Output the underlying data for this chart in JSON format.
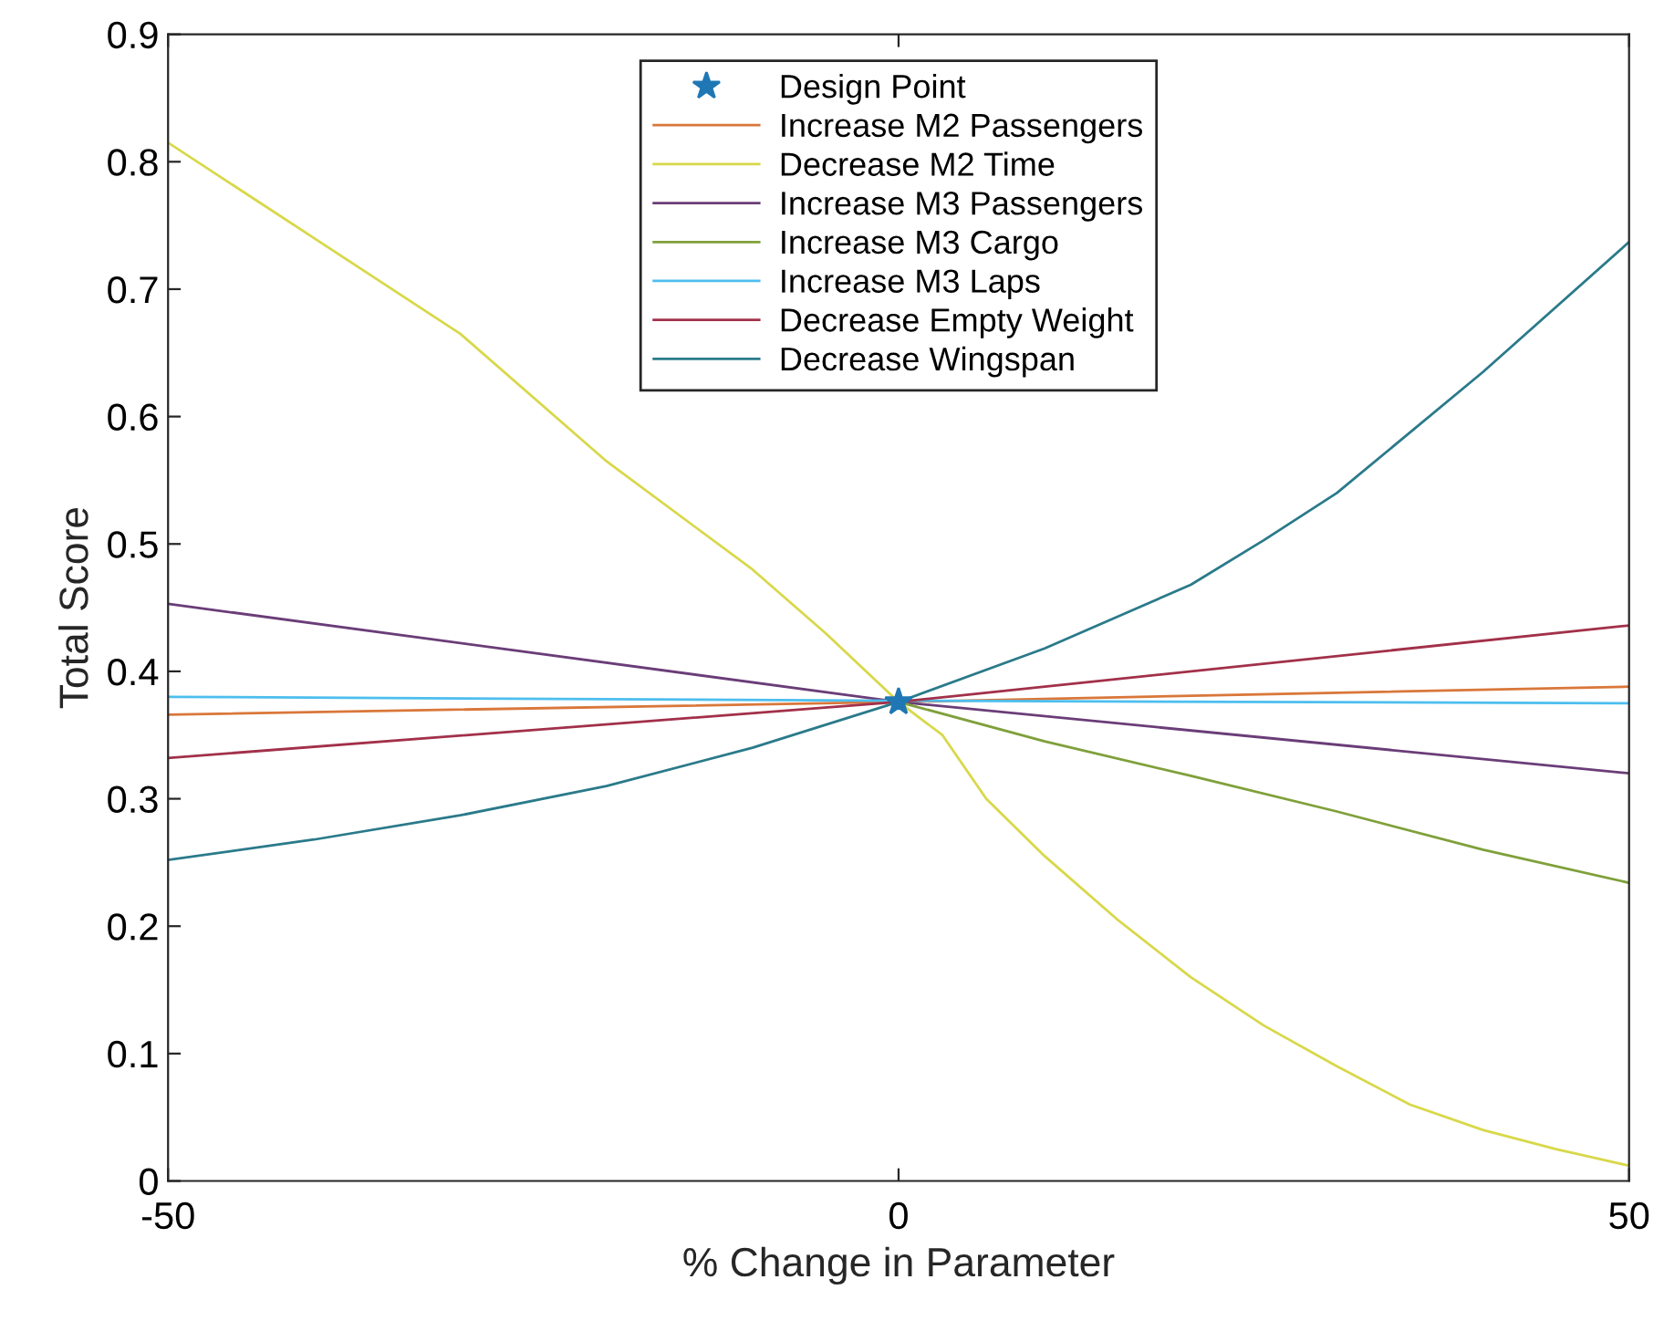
{
  "chart_data": {
    "type": "line",
    "xlabel": "% Change in Parameter",
    "ylabel": "Total Score",
    "xlim": [
      -50,
      50
    ],
    "xticks": [
      -50,
      0,
      50
    ],
    "ylim": [
      0,
      0.9
    ],
    "yticks": [
      0,
      0.1,
      0.2,
      0.3,
      0.4,
      0.5,
      0.6,
      0.7,
      0.8,
      0.9
    ],
    "grid": false,
    "legend": "top",
    "line_style": "solid",
    "series": [
      {
        "name": "Design Point",
        "type": "scatter",
        "marker": "star",
        "color": "#1f77b4",
        "x": [
          0
        ],
        "values": [
          0.376
        ]
      },
      {
        "name": "Increase M2 Passengers",
        "color": "#d9773a",
        "x": [
          -50,
          0,
          50
        ],
        "values": [
          0.366,
          0.376,
          0.388
        ]
      },
      {
        "name": "Decrease M2 Time",
        "color": "#d8d84a",
        "x": [
          -50,
          -40,
          -30,
          -20,
          -10,
          -5,
          0,
          3,
          6,
          10,
          15,
          20,
          25,
          30,
          35,
          40,
          45,
          50
        ],
        "values": [
          0.815,
          0.74,
          0.665,
          0.565,
          0.48,
          0.43,
          0.376,
          0.35,
          0.3,
          0.255,
          0.205,
          0.16,
          0.122,
          0.09,
          0.06,
          0.04,
          0.025,
          0.012
        ]
      },
      {
        "name": "Increase M3 Passengers",
        "color": "#6a3d78",
        "x": [
          -50,
          0,
          50
        ],
        "values": [
          0.453,
          0.376,
          0.32
        ]
      },
      {
        "name": "Increase M3 Cargo",
        "color": "#7fa03a",
        "x": [
          0,
          10,
          20,
          30,
          40,
          50
        ],
        "values": [
          0.376,
          0.345,
          0.318,
          0.29,
          0.26,
          0.234
        ]
      },
      {
        "name": "Increase M3 Laps",
        "color": "#4dbeee",
        "x": [
          -50,
          0,
          50
        ],
        "values": [
          0.38,
          0.377,
          0.375
        ]
      },
      {
        "name": "Decrease Empty Weight",
        "color": "#a2304a",
        "x": [
          -50,
          0,
          50
        ],
        "values": [
          0.332,
          0.376,
          0.436
        ]
      },
      {
        "name": "Decrease Wingspan",
        "color": "#2a7a8a",
        "x": [
          -50,
          -40,
          -30,
          -20,
          -10,
          0,
          10,
          20,
          25,
          30,
          40,
          50
        ],
        "values": [
          0.252,
          0.268,
          0.287,
          0.31,
          0.34,
          0.376,
          0.418,
          0.468,
          0.503,
          0.54,
          0.635,
          0.737
        ]
      }
    ]
  }
}
